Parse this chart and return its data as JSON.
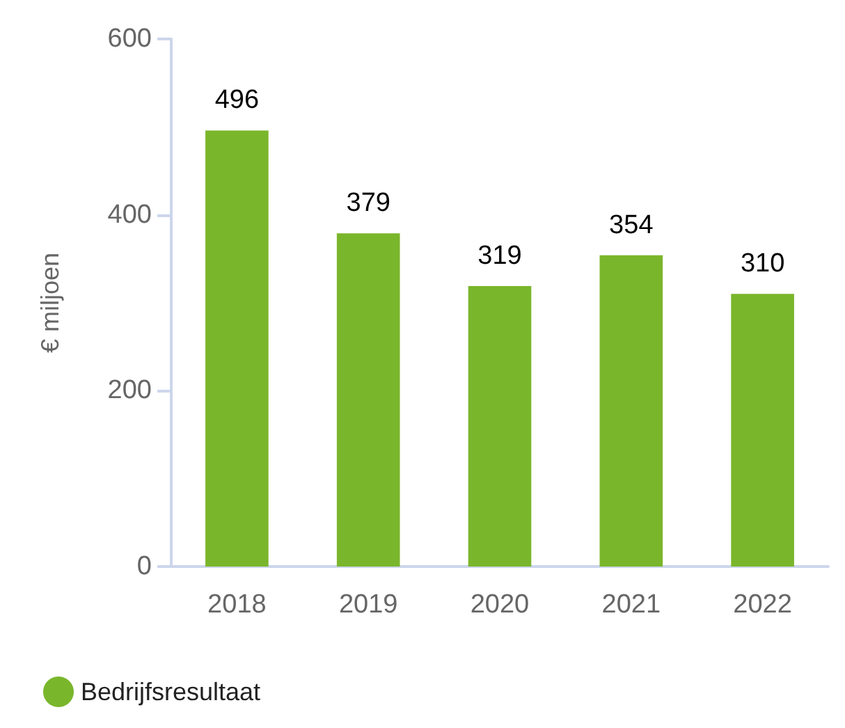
{
  "chart_data": {
    "type": "bar",
    "ylabel": "€ miljoen",
    "categories": [
      "2018",
      "2019",
      "2020",
      "2021",
      "2022"
    ],
    "series": [
      {
        "name": "Bedrijfsresultaat",
        "color": "#7ab62b",
        "values": [
          496,
          379,
          319,
          354,
          310
        ]
      }
    ],
    "ylim": [
      0,
      600
    ],
    "yticks": [
      0,
      200,
      400,
      600
    ],
    "data_labels": true,
    "grid": false,
    "legend": "bottom left"
  }
}
